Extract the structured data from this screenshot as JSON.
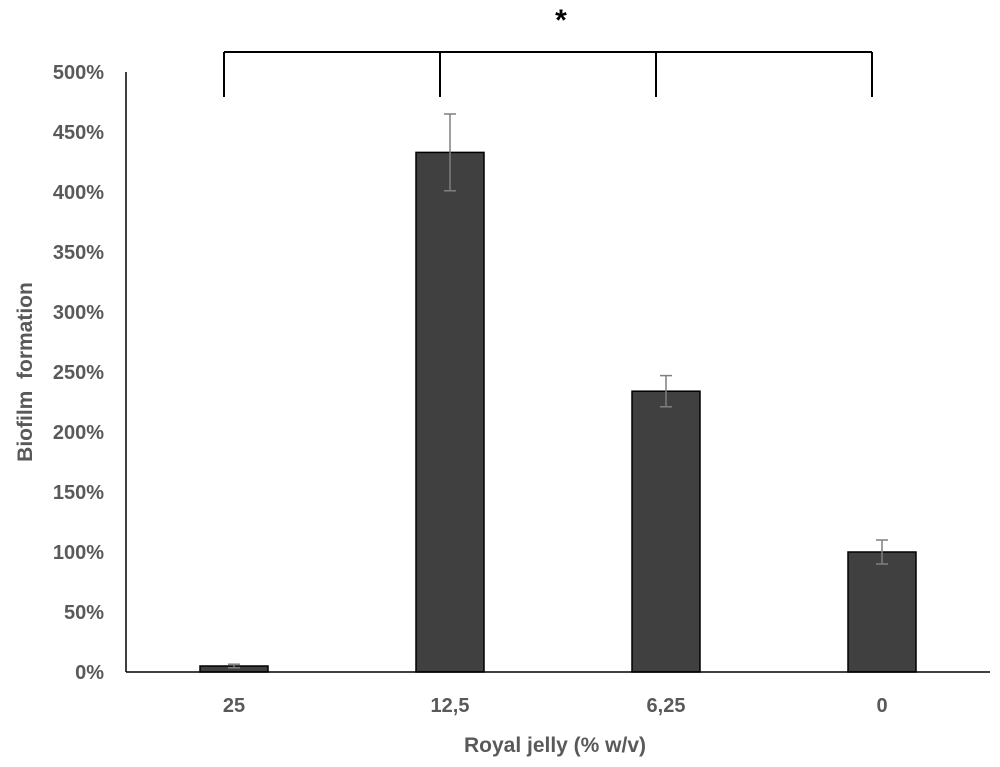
{
  "chart_data": {
    "type": "bar",
    "categories": [
      "25",
      "12,5",
      "6,25",
      "0"
    ],
    "values": [
      5,
      433,
      234,
      100
    ],
    "errors": [
      1.5,
      32,
      13,
      10
    ],
    "value_unit": "%",
    "xlabel": "Royal jelly (% w/v)",
    "ylabel": "Biofilm  formation",
    "ylim": [
      0,
      500
    ],
    "yticks": [
      0,
      50,
      100,
      150,
      200,
      250,
      300,
      350,
      400,
      450,
      500
    ],
    "ytick_labels": [
      "0%",
      "50%",
      "100%",
      "150%",
      "200%",
      "250%",
      "300%",
      "350%",
      "400%",
      "450%",
      "500%"
    ],
    "grid": false,
    "legend": "none",
    "significance": {
      "label": "*",
      "spans_categories": [
        "25",
        "12,5",
        "6,25",
        "0"
      ]
    },
    "colors": {
      "bar_fill": "#404040",
      "bar_edge": "#000000",
      "error_bar": "#7f7f7f",
      "axis_text": "#595959",
      "axis_line": "#000000"
    }
  }
}
